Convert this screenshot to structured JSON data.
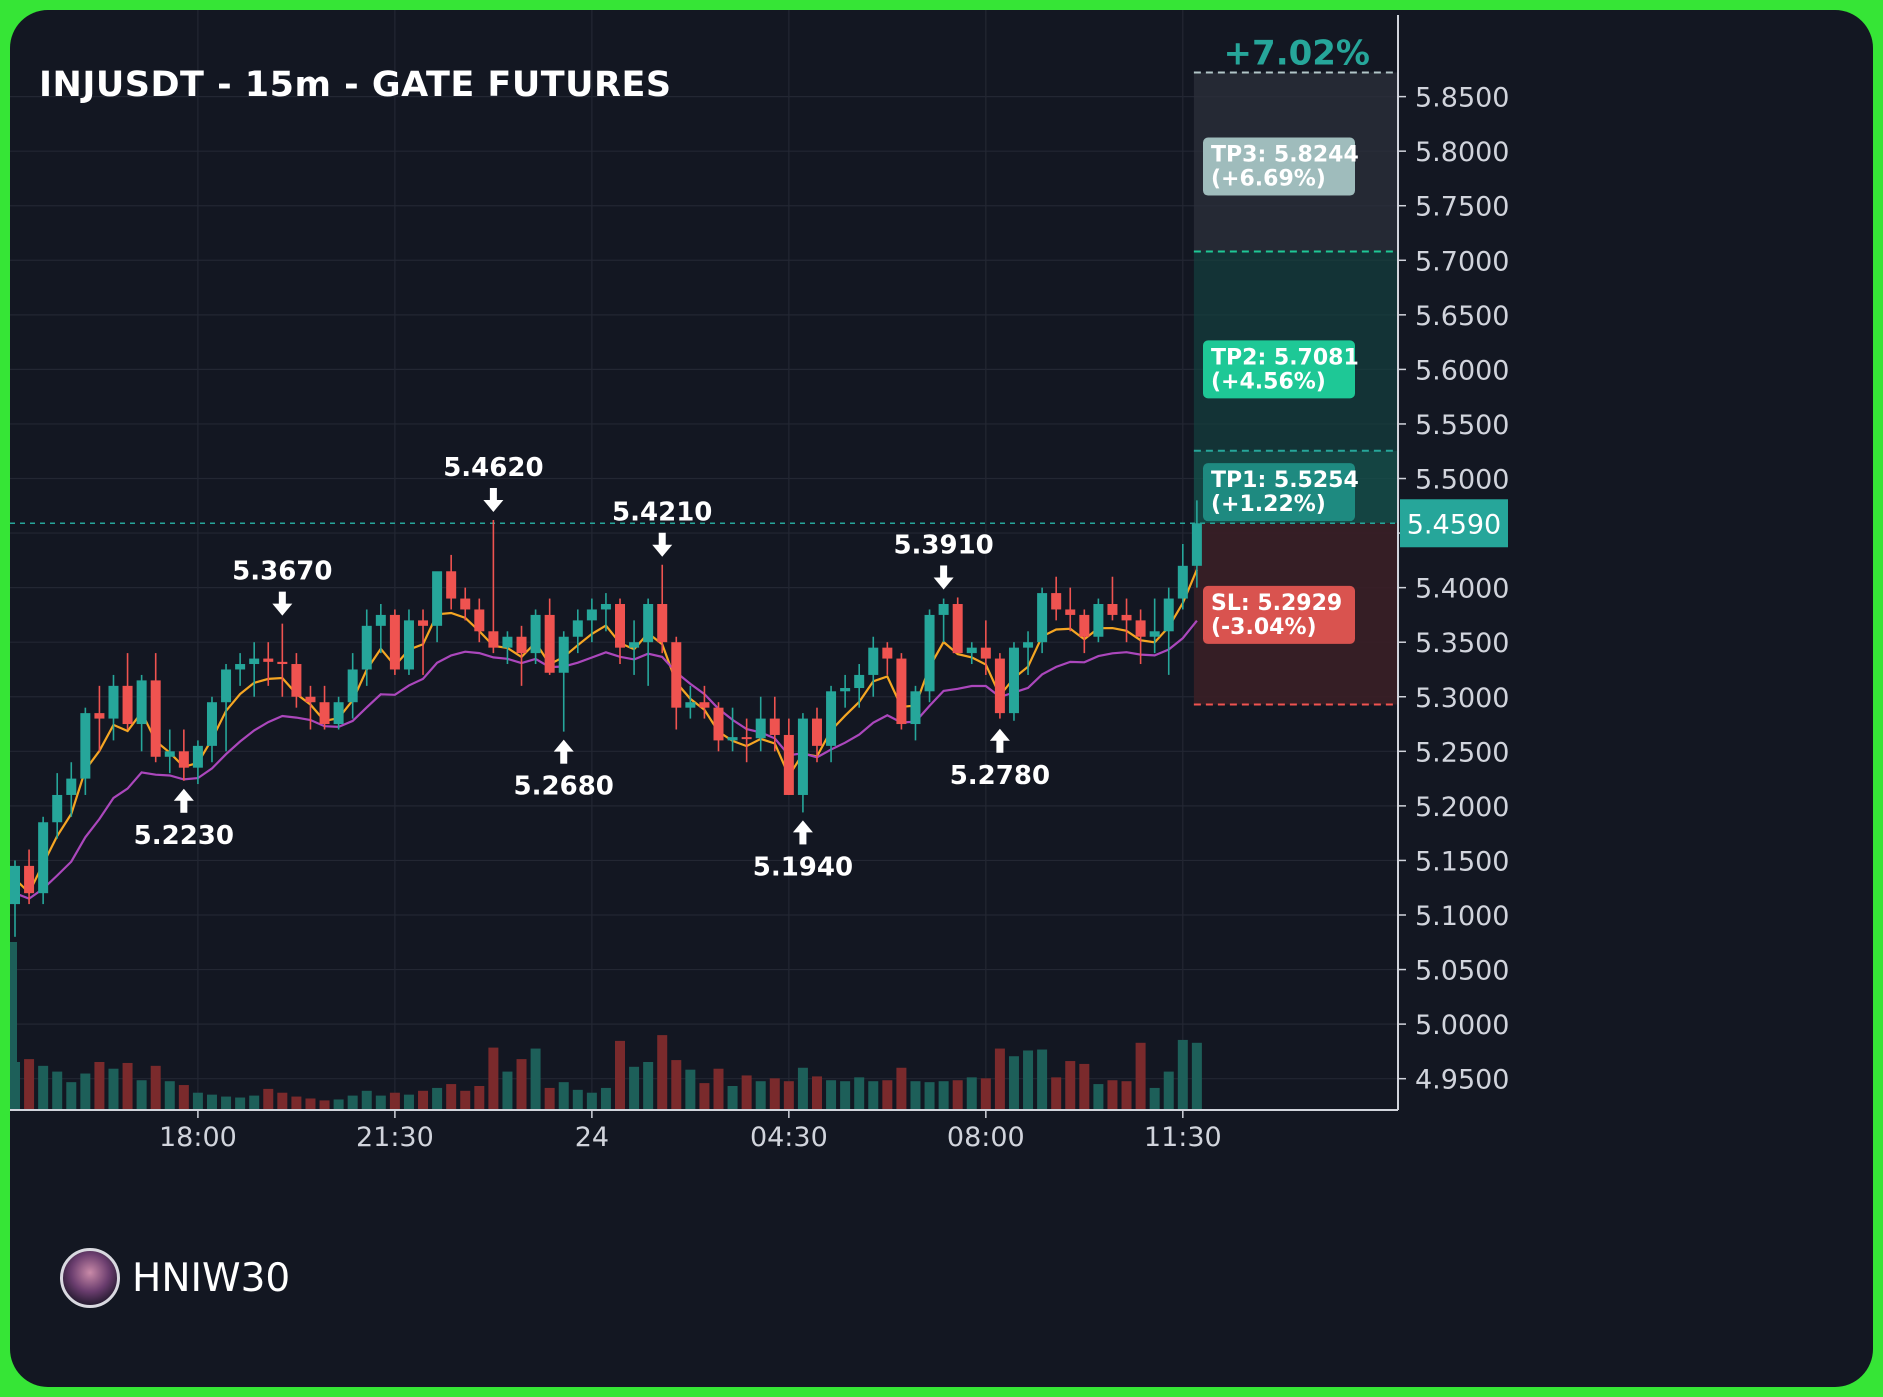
{
  "header": {
    "title": "INJUSDT - 15m - GATE FUTURES"
  },
  "watermark": {
    "name": "HNIW30"
  },
  "colors": {
    "background": "#131722",
    "frame": "#36e536",
    "bull": "#26a69a",
    "bear": "#ef5350",
    "ema_fast": "#f5a623",
    "ema_slow": "#ab47bc",
    "tp": "#1ec896",
    "sl": "#d9534f"
  },
  "chart_data": {
    "type": "candlestick",
    "symbol": "INJUSDT",
    "interval": "15m",
    "exchange": "GATE FUTURES",
    "y_axis": {
      "range": [
        4.93,
        5.895
      ],
      "ticks": [
        "5.8500",
        "5.8000",
        "5.7500",
        "5.7000",
        "5.6500",
        "5.6000",
        "5.5500",
        "5.5000",
        "5.4500",
        "5.4000",
        "5.3500",
        "5.3000",
        "5.2500",
        "5.2000",
        "5.1500",
        "5.1000",
        "5.0500",
        "5.0000",
        "4.9500"
      ]
    },
    "x_axis": {
      "ticks": [
        {
          "index": 13,
          "label": "18:00"
        },
        {
          "index": 27,
          "label": "21:30"
        },
        {
          "index": 41,
          "label": "24"
        },
        {
          "index": 55,
          "label": "04:30"
        },
        {
          "index": 69,
          "label": "08:00"
        },
        {
          "index": 83,
          "label": "11:30"
        }
      ]
    },
    "candles": [
      [
        5.11,
        5.15,
        5.08,
        5.145,
        5.0
      ],
      [
        5.145,
        5.16,
        5.11,
        5.12,
        5.3
      ],
      [
        5.12,
        5.19,
        5.11,
        5.185,
        4.6
      ],
      [
        5.185,
        5.23,
        5.17,
        5.21,
        4.0
      ],
      [
        5.21,
        5.24,
        5.19,
        5.225,
        2.9
      ],
      [
        5.225,
        5.29,
        5.21,
        5.285,
        3.8
      ],
      [
        5.285,
        5.31,
        5.25,
        5.28,
        5.0
      ],
      [
        5.28,
        5.32,
        5.26,
        5.31,
        4.3
      ],
      [
        5.31,
        5.34,
        5.27,
        5.275,
        4.9
      ],
      [
        5.275,
        5.32,
        5.25,
        5.315,
        3.1
      ],
      [
        5.315,
        5.34,
        5.24,
        5.245,
        4.6
      ],
      [
        5.245,
        5.27,
        5.23,
        5.25,
        3.0
      ],
      [
        5.25,
        5.27,
        5.223,
        5.235,
        2.6
      ],
      [
        5.235,
        5.26,
        5.22,
        5.255,
        1.8
      ],
      [
        5.255,
        5.3,
        5.24,
        5.295,
        1.6
      ],
      [
        5.295,
        5.33,
        5.25,
        5.325,
        1.4
      ],
      [
        5.325,
        5.34,
        5.31,
        5.33,
        1.3
      ],
      [
        5.33,
        5.35,
        5.3,
        5.335,
        1.5
      ],
      [
        5.335,
        5.35,
        5.31,
        5.332,
        2.2
      ],
      [
        5.332,
        5.367,
        5.3,
        5.33,
        1.8
      ],
      [
        5.33,
        5.34,
        5.29,
        5.3,
        1.4
      ],
      [
        5.3,
        5.31,
        5.27,
        5.295,
        1.2
      ],
      [
        5.295,
        5.31,
        5.27,
        5.275,
        1.0
      ],
      [
        5.275,
        5.3,
        5.27,
        5.295,
        1.1
      ],
      [
        5.295,
        5.34,
        5.28,
        5.325,
        1.5
      ],
      [
        5.325,
        5.38,
        5.31,
        5.365,
        2.0
      ],
      [
        5.365,
        5.385,
        5.34,
        5.375,
        1.5
      ],
      [
        5.375,
        5.38,
        5.32,
        5.325,
        1.8
      ],
      [
        5.325,
        5.38,
        5.32,
        5.37,
        1.6
      ],
      [
        5.37,
        5.38,
        5.32,
        5.365,
        2.0
      ],
      [
        5.365,
        5.41,
        5.35,
        5.415,
        2.3
      ],
      [
        5.415,
        5.43,
        5.38,
        5.39,
        2.7
      ],
      [
        5.39,
        5.4,
        5.37,
        5.38,
        2.0
      ],
      [
        5.38,
        5.39,
        5.35,
        5.36,
        2.5
      ],
      [
        5.36,
        5.462,
        5.34,
        5.345,
        6.5
      ],
      [
        5.345,
        5.36,
        5.33,
        5.355,
        4.0
      ],
      [
        5.355,
        5.365,
        5.31,
        5.34,
        5.3
      ],
      [
        5.34,
        5.38,
        5.33,
        5.375,
        6.4
      ],
      [
        5.375,
        5.39,
        5.32,
        5.322,
        2.3
      ],
      [
        5.322,
        5.36,
        5.268,
        5.355,
        2.9
      ],
      [
        5.355,
        5.38,
        5.34,
        5.37,
        2.1
      ],
      [
        5.37,
        5.39,
        5.35,
        5.38,
        1.8
      ],
      [
        5.38,
        5.395,
        5.36,
        5.385,
        2.3
      ],
      [
        5.385,
        5.39,
        5.33,
        5.345,
        7.2
      ],
      [
        5.345,
        5.37,
        5.32,
        5.35,
        4.5
      ],
      [
        5.35,
        5.39,
        5.31,
        5.385,
        5.0
      ],
      [
        5.385,
        5.421,
        5.34,
        5.35,
        7.8
      ],
      [
        5.35,
        5.355,
        5.27,
        5.29,
        5.2
      ],
      [
        5.29,
        5.31,
        5.28,
        5.295,
        4.2
      ],
      [
        5.295,
        5.31,
        5.28,
        5.29,
        2.8
      ],
      [
        5.29,
        5.295,
        5.25,
        5.26,
        4.3
      ],
      [
        5.26,
        5.29,
        5.25,
        5.263,
        2.5
      ],
      [
        5.263,
        5.28,
        5.24,
        5.262,
        3.6
      ],
      [
        5.262,
        5.3,
        5.25,
        5.28,
        3.0
      ],
      [
        5.28,
        5.3,
        5.25,
        5.265,
        3.3
      ],
      [
        5.265,
        5.28,
        5.21,
        5.21,
        3.0
      ],
      [
        5.21,
        5.285,
        5.194,
        5.28,
        4.4
      ],
      [
        5.28,
        5.29,
        5.24,
        5.255,
        3.5
      ],
      [
        5.255,
        5.31,
        5.24,
        5.305,
        3.1
      ],
      [
        5.305,
        5.32,
        5.29,
        5.308,
        3.0
      ],
      [
        5.308,
        5.33,
        5.29,
        5.32,
        3.4
      ],
      [
        5.32,
        5.355,
        5.3,
        5.345,
        3.0
      ],
      [
        5.345,
        5.35,
        5.32,
        5.335,
        3.1
      ],
      [
        5.335,
        5.34,
        5.27,
        5.275,
        4.4
      ],
      [
        5.275,
        5.31,
        5.26,
        5.305,
        3.0
      ],
      [
        5.305,
        5.38,
        5.295,
        5.375,
        2.9
      ],
      [
        5.375,
        5.39,
        5.35,
        5.385,
        3.0
      ],
      [
        5.385,
        5.391,
        5.34,
        5.34,
        3.1
      ],
      [
        5.34,
        5.35,
        5.33,
        5.345,
        3.4
      ],
      [
        5.345,
        5.37,
        5.32,
        5.335,
        3.3
      ],
      [
        5.335,
        5.34,
        5.28,
        5.285,
        6.4
      ],
      [
        5.285,
        5.35,
        5.278,
        5.345,
        5.6
      ],
      [
        5.345,
        5.36,
        5.32,
        5.35,
        6.2
      ],
      [
        5.35,
        5.4,
        5.34,
        5.395,
        6.3
      ],
      [
        5.395,
        5.41,
        5.37,
        5.38,
        3.4
      ],
      [
        5.38,
        5.4,
        5.36,
        5.375,
        5.1
      ],
      [
        5.375,
        5.38,
        5.34,
        5.355,
        4.8
      ],
      [
        5.355,
        5.39,
        5.35,
        5.385,
        2.7
      ],
      [
        5.385,
        5.41,
        5.37,
        5.375,
        3.1
      ],
      [
        5.375,
        5.39,
        5.35,
        5.37,
        3.0
      ],
      [
        5.37,
        5.38,
        5.33,
        5.355,
        7.0
      ],
      [
        5.355,
        5.39,
        5.34,
        5.36,
        2.3
      ],
      [
        5.36,
        5.4,
        5.32,
        5.39,
        4.0
      ],
      [
        5.39,
        5.44,
        5.38,
        5.42,
        7.3
      ],
      [
        5.42,
        5.48,
        5.4,
        5.459,
        7.0
      ]
    ],
    "ema_fast_label": "",
    "ema_slow_label": "",
    "annotations": [
      {
        "index": 12,
        "price": 5.223,
        "label": "5.2230",
        "type": "low"
      },
      {
        "index": 19,
        "price": 5.367,
        "label": "5.3670",
        "type": "high"
      },
      {
        "index": 34,
        "price": 5.462,
        "label": "5.4620",
        "type": "high"
      },
      {
        "index": 39,
        "price": 5.268,
        "label": "5.2680",
        "type": "low"
      },
      {
        "index": 46,
        "price": 5.421,
        "label": "5.4210",
        "type": "high"
      },
      {
        "index": 56,
        "price": 5.194,
        "label": "5.1940",
        "type": "low"
      },
      {
        "index": 66,
        "price": 5.391,
        "label": "5.3910",
        "type": "high"
      },
      {
        "index": 70,
        "price": 5.278,
        "label": "5.2780",
        "type": "low"
      }
    ],
    "current_price": {
      "value": 5.459,
      "label": "5.4590"
    },
    "trade": {
      "entry": 5.459,
      "take_profits": [
        {
          "price": 5.5254,
          "label": "TP1: 5.5254",
          "pct": "(+1.22%)"
        },
        {
          "price": 5.7081,
          "label": "TP2: 5.7081",
          "pct": "(+4.56%)"
        },
        {
          "price": 5.8244,
          "label": "TP3: 5.8244",
          "pct": "(+6.69%)"
        }
      ],
      "stop_loss": {
        "price": 5.2929,
        "label": "SL: 5.2929",
        "pct": "(-3.04%)"
      },
      "total_gain": "+7.02%"
    }
  }
}
